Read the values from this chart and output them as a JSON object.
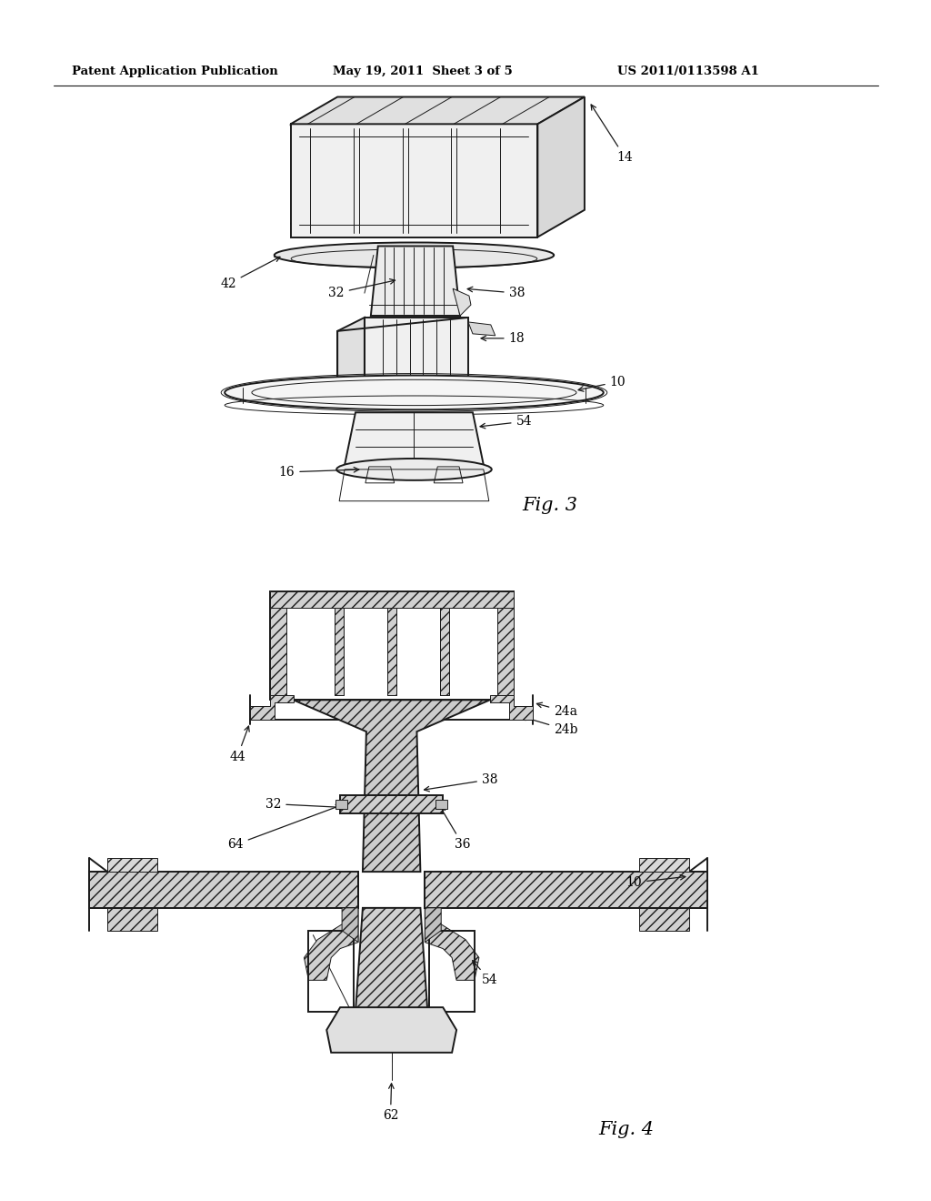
{
  "bg_color": "#ffffff",
  "header_left": "Patent Application Publication",
  "header_mid": "May 19, 2011  Sheet 3 of 5",
  "header_right": "US 2011/0113598 A1",
  "fig3_label": "Fig. 3",
  "fig4_label": "Fig. 4",
  "line_color": "#1a1a1a",
  "lw_main": 1.4,
  "lw_thin": 0.7,
  "lw_hatch": 0.5
}
